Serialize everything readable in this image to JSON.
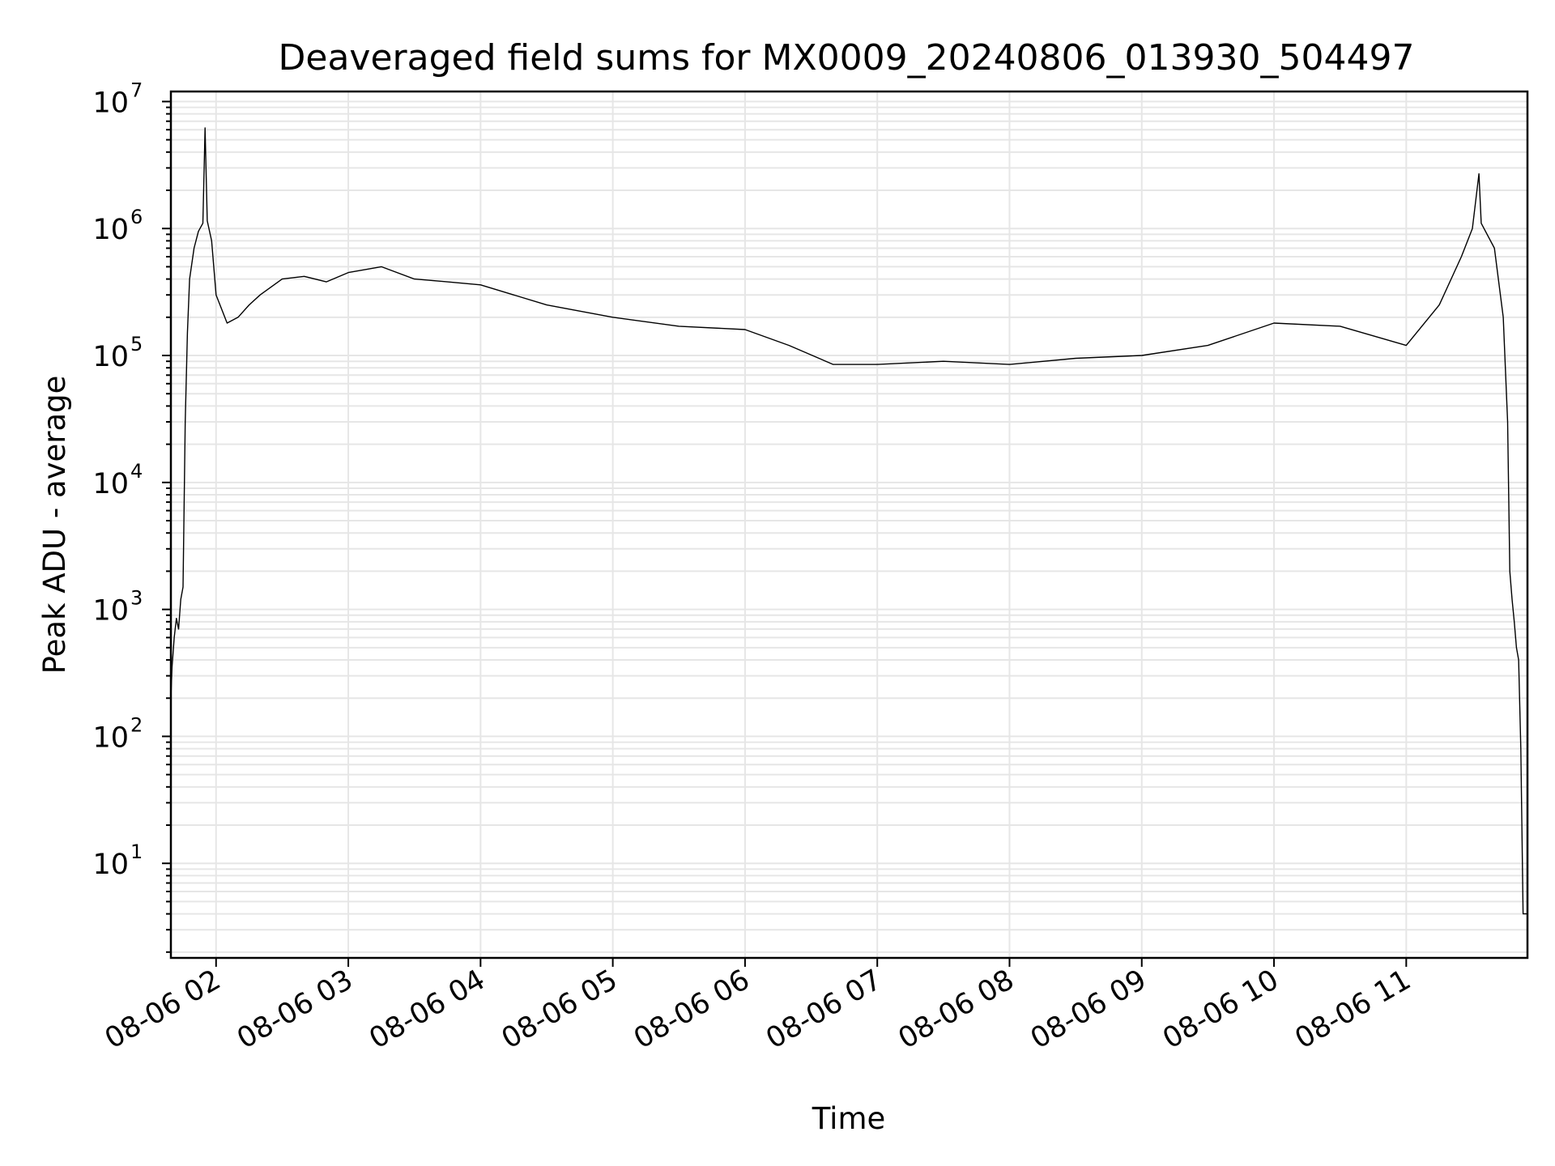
{
  "chart_data": {
    "type": "line",
    "title": "Deaveraged field sums for MX0009_20240806_013930_504497",
    "xlabel": "Time",
    "ylabel": "Peak ADU - average",
    "yscale": "log",
    "ylim": [
      1.8,
      12000000
    ],
    "xlim": [
      "2024-08-06 01:39:30",
      "2024-08-06 11:55:00"
    ],
    "grid": true,
    "y_tick_labels": [
      {
        "base": "10",
        "exp": "1",
        "value": 10
      },
      {
        "base": "10",
        "exp": "2",
        "value": 100
      },
      {
        "base": "10",
        "exp": "3",
        "value": 1000
      },
      {
        "base": "10",
        "exp": "4",
        "value": 10000
      },
      {
        "base": "10",
        "exp": "5",
        "value": 100000
      },
      {
        "base": "10",
        "exp": "6",
        "value": 1000000
      },
      {
        "base": "10",
        "exp": "7",
        "value": 10000000
      }
    ],
    "x_tick_labels": [
      {
        "label": "08-06 02",
        "time": "2024-08-06 02:00"
      },
      {
        "label": "08-06 03",
        "time": "2024-08-06 03:00"
      },
      {
        "label": "08-06 04",
        "time": "2024-08-06 04:00"
      },
      {
        "label": "08-06 05",
        "time": "2024-08-06 05:00"
      },
      {
        "label": "08-06 06",
        "time": "2024-08-06 06:00"
      },
      {
        "label": "08-06 07",
        "time": "2024-08-06 07:00"
      },
      {
        "label": "08-06 08",
        "time": "2024-08-06 08:00"
      },
      {
        "label": "08-06 09",
        "time": "2024-08-06 09:00"
      },
      {
        "label": "08-06 10",
        "time": "2024-08-06 10:00"
      },
      {
        "label": "08-06 11",
        "time": "2024-08-06 11:00"
      }
    ],
    "series": [
      {
        "color": "#000000",
        "points": [
          [
            "2024-08-06 01:39:30",
            200
          ],
          [
            "2024-08-06 01:40:00",
            350
          ],
          [
            "2024-08-06 01:41:00",
            600
          ],
          [
            "2024-08-06 01:42:00",
            850
          ],
          [
            "2024-08-06 01:43:00",
            700
          ],
          [
            "2024-08-06 01:44:00",
            1200
          ],
          [
            "2024-08-06 01:45:00",
            1500
          ],
          [
            "2024-08-06 01:46:00",
            30000
          ],
          [
            "2024-08-06 01:47:00",
            150000
          ],
          [
            "2024-08-06 01:48:00",
            400000
          ],
          [
            "2024-08-06 01:50:00",
            700000
          ],
          [
            "2024-08-06 01:52:00",
            950000
          ],
          [
            "2024-08-06 01:54:00",
            1100000
          ],
          [
            "2024-08-06 01:55:00",
            6200000
          ],
          [
            "2024-08-06 01:56:00",
            1150000
          ],
          [
            "2024-08-06 01:58:00",
            800000
          ],
          [
            "2024-08-06 02:00:00",
            300000
          ],
          [
            "2024-08-06 02:05:00",
            180000
          ],
          [
            "2024-08-06 02:10:00",
            200000
          ],
          [
            "2024-08-06 02:15:00",
            250000
          ],
          [
            "2024-08-06 02:20:00",
            300000
          ],
          [
            "2024-08-06 02:30:00",
            400000
          ],
          [
            "2024-08-06 02:40:00",
            420000
          ],
          [
            "2024-08-06 02:50:00",
            380000
          ],
          [
            "2024-08-06 03:00:00",
            450000
          ],
          [
            "2024-08-06 03:15:00",
            500000
          ],
          [
            "2024-08-06 03:30:00",
            400000
          ],
          [
            "2024-08-06 03:45:00",
            380000
          ],
          [
            "2024-08-06 04:00:00",
            360000
          ],
          [
            "2024-08-06 04:30:00",
            250000
          ],
          [
            "2024-08-06 05:00:00",
            200000
          ],
          [
            "2024-08-06 05:30:00",
            170000
          ],
          [
            "2024-08-06 06:00:00",
            160000
          ],
          [
            "2024-08-06 06:20:00",
            120000
          ],
          [
            "2024-08-06 06:40:00",
            85000
          ],
          [
            "2024-08-06 07:00:00",
            85000
          ],
          [
            "2024-08-06 07:30:00",
            90000
          ],
          [
            "2024-08-06 08:00:00",
            85000
          ],
          [
            "2024-08-06 08:30:00",
            95000
          ],
          [
            "2024-08-06 09:00:00",
            100000
          ],
          [
            "2024-08-06 09:30:00",
            120000
          ],
          [
            "2024-08-06 10:00:00",
            180000
          ],
          [
            "2024-08-06 10:30:00",
            170000
          ],
          [
            "2024-08-06 11:00:00",
            120000
          ],
          [
            "2024-08-06 11:15:00",
            250000
          ],
          [
            "2024-08-06 11:25:00",
            600000
          ],
          [
            "2024-08-06 11:30:00",
            1000000
          ],
          [
            "2024-08-06 11:33:00",
            2700000
          ],
          [
            "2024-08-06 11:34:00",
            1100000
          ],
          [
            "2024-08-06 11:40:00",
            700000
          ],
          [
            "2024-08-06 11:44:00",
            200000
          ],
          [
            "2024-08-06 11:46:00",
            30000
          ],
          [
            "2024-08-06 11:47:00",
            2000
          ],
          [
            "2024-08-06 11:48:00",
            1200
          ],
          [
            "2024-08-06 11:49:00",
            800
          ],
          [
            "2024-08-06 11:50:00",
            500
          ],
          [
            "2024-08-06 11:51:00",
            400
          ],
          [
            "2024-08-06 11:52:00",
            80
          ],
          [
            "2024-08-06 11:53:00",
            4
          ],
          [
            "2024-08-06 11:55:00",
            4
          ]
        ]
      }
    ]
  }
}
